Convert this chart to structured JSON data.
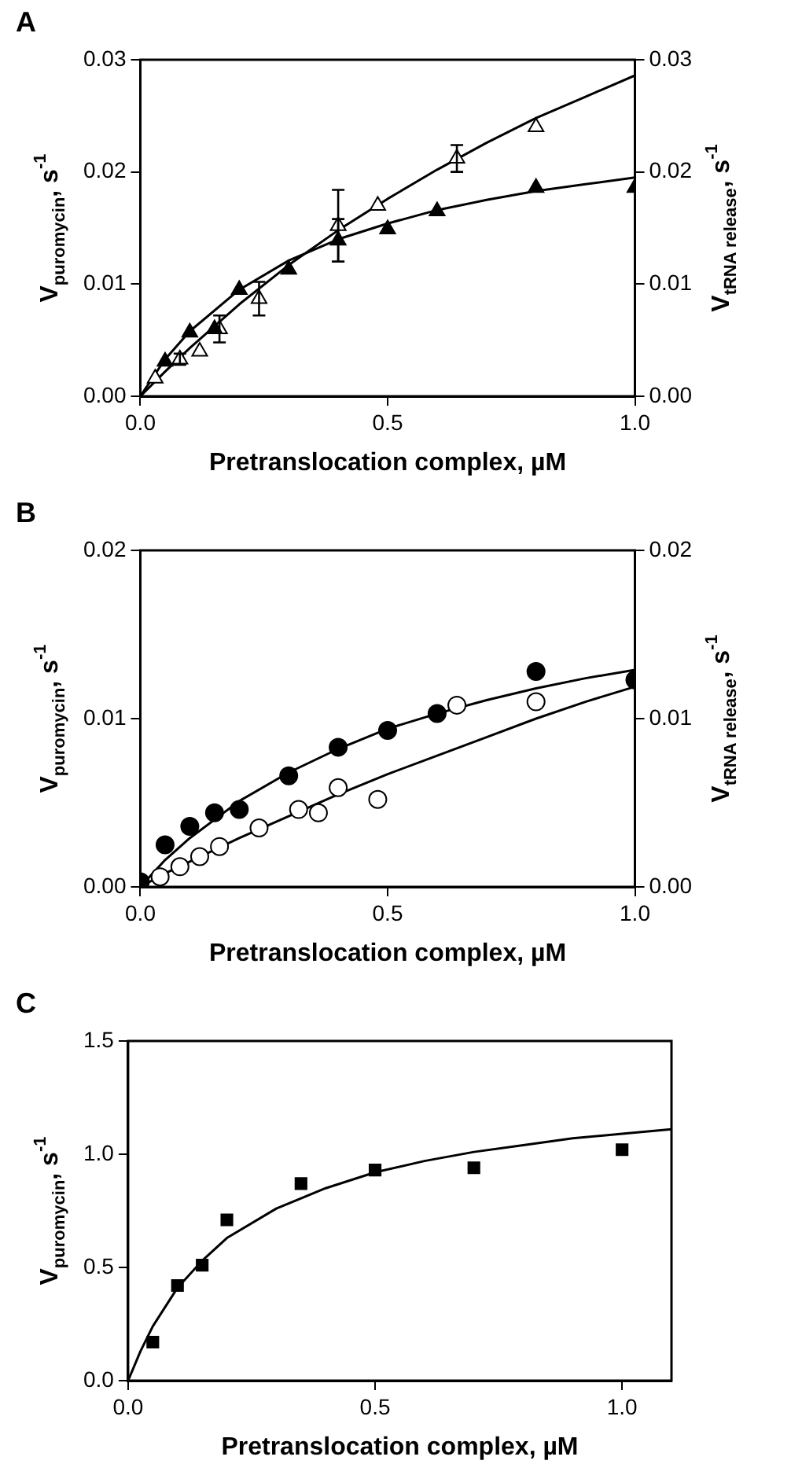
{
  "chart_data": [
    {
      "type": "scatter",
      "title": "A",
      "xlabel": "Pretranslocation complex, µM",
      "ylabel": "V$_{puromycin}$, s$^{-1}$",
      "y2label": "V$_{tRNA release}$, s$^{-1}$",
      "xlim": [
        0,
        1.0
      ],
      "xticks": [
        {
          "value": 0,
          "label": "0.0"
        },
        {
          "value": 0.5,
          "label": "0.5"
        },
        {
          "value": 1,
          "label": "1.0"
        }
      ],
      "ylim": [
        0,
        0.03
      ],
      "yticks": [
        {
          "value": 0,
          "label": "0.00"
        },
        {
          "value": 0.01,
          "label": "0.01"
        },
        {
          "value": 0.02,
          "label": "0.02"
        },
        {
          "value": 0.03,
          "label": "0.03"
        }
      ],
      "y2lim": [
        0,
        0.03
      ],
      "y2ticks": [
        {
          "value": 0,
          "label": "0.00"
        },
        {
          "value": 0.01,
          "label": "0.01"
        },
        {
          "value": 0.02,
          "label": "0.02"
        },
        {
          "value": 0.03,
          "label": "0.03"
        }
      ],
      "grid": false,
      "legend": false,
      "series": [
        {
          "type": "scatter",
          "color": "#000000",
          "marker": "triangle",
          "x": [
            0.05,
            0.1,
            0.15,
            0.2,
            0.3,
            0.4,
            0.5,
            0.6,
            0.8,
            1.0
          ],
          "values": [
            0.0031,
            0.0057,
            0.006,
            0.0095,
            0.0113,
            0.0139,
            0.0149,
            0.0165,
            0.0186,
            0.0186
          ],
          "errors": [
            null,
            null,
            null,
            null,
            null,
            0.0019,
            null,
            null,
            null,
            null
          ]
        },
        {
          "type": "scatter",
          "color": "#ffffff",
          "marker": "triangle",
          "x": [
            0.03,
            0.08,
            0.12,
            0.16,
            0.24,
            0.4,
            0.48,
            0.64,
            0.8
          ],
          "values": [
            0.0016,
            0.0033,
            0.004,
            0.006,
            0.0087,
            0.0152,
            0.017,
            0.0212,
            0.024
          ],
          "errors": [
            null,
            0.0005,
            null,
            0.0012,
            0.0015,
            0.0032,
            null,
            0.0012,
            null
          ]
        },
        {
          "type": "line",
          "color": "#000000",
          "marker": "none",
          "x": [
            0,
            0.05,
            0.1,
            0.2,
            0.3,
            0.4,
            0.5,
            0.6,
            0.7,
            0.8,
            0.9,
            1.0
          ],
          "values": [
            0,
            0.0033,
            0.0058,
            0.0095,
            0.0121,
            0.014,
            0.0154,
            0.0166,
            0.0175,
            0.0183,
            0.0189,
            0.0195
          ]
        },
        {
          "type": "line",
          "color": "#000000",
          "marker": "none",
          "x": [
            0,
            0.05,
            0.1,
            0.2,
            0.3,
            0.4,
            0.5,
            0.6,
            0.7,
            0.8,
            0.9,
            1.0
          ],
          "values": [
            0,
            0.0022,
            0.0043,
            0.0082,
            0.0117,
            0.0148,
            0.0176,
            0.0202,
            0.0226,
            0.0248,
            0.0267,
            0.0286
          ]
        }
      ]
    },
    {
      "type": "scatter",
      "title": "B",
      "xlabel": "Pretranslocation complex, µM",
      "ylabel": "V$_{puromycin}$, s$^{-1}$",
      "y2label": "V$_{tRNA release}$, s$^{-1}$",
      "xlim": [
        0,
        1.0
      ],
      "xticks": [
        {
          "value": 0,
          "label": "0.0"
        },
        {
          "value": 0.5,
          "label": "0.5"
        },
        {
          "value": 1,
          "label": "1.0"
        }
      ],
      "ylim": [
        0,
        0.02
      ],
      "yticks": [
        {
          "value": 0,
          "label": "0.00"
        },
        {
          "value": 0.01,
          "label": "0.01"
        },
        {
          "value": 0.02,
          "label": "0.02"
        }
      ],
      "y2lim": [
        0,
        0.02
      ],
      "y2ticks": [
        {
          "value": 0,
          "label": "0.00"
        },
        {
          "value": 0.01,
          "label": "0.01"
        },
        {
          "value": 0.02,
          "label": "0.02"
        }
      ],
      "grid": false,
      "legend": false,
      "series": [
        {
          "type": "scatter",
          "color": "#000000",
          "marker": "circle",
          "x": [
            0,
            0.05,
            0.1,
            0.15,
            0.2,
            0.3,
            0.4,
            0.5,
            0.6,
            0.8,
            1.0
          ],
          "values": [
            0.0003,
            0.0025,
            0.0036,
            0.0044,
            0.0046,
            0.0066,
            0.0083,
            0.0093,
            0.0103,
            0.0128,
            0.0123
          ]
        },
        {
          "type": "scatter",
          "color": "#ffffff",
          "marker": "circle",
          "x": [
            0.04,
            0.08,
            0.12,
            0.16,
            0.24,
            0.32,
            0.36,
            0.4,
            0.48,
            0.64,
            0.8
          ],
          "values": [
            0.0006,
            0.0012,
            0.0018,
            0.0024,
            0.0035,
            0.0046,
            0.0044,
            0.0059,
            0.0052,
            0.0108,
            0.011
          ]
        },
        {
          "type": "line",
          "color": "#000000",
          "marker": "none",
          "x": [
            0,
            0.05,
            0.1,
            0.2,
            0.3,
            0.4,
            0.5,
            0.6,
            0.7,
            0.8,
            0.9,
            1.0
          ],
          "values": [
            0,
            0.0016,
            0.0029,
            0.0051,
            0.0068,
            0.0082,
            0.0094,
            0.0103,
            0.0111,
            0.0118,
            0.0124,
            0.0129
          ]
        },
        {
          "type": "line",
          "color": "#000000",
          "marker": "none",
          "x": [
            0,
            0.05,
            0.1,
            0.2,
            0.3,
            0.4,
            0.5,
            0.6,
            0.7,
            0.8,
            0.9,
            1.0
          ],
          "values": [
            0,
            0.0008,
            0.0015,
            0.0029,
            0.0042,
            0.0055,
            0.0067,
            0.0078,
            0.0089,
            0.01,
            0.011,
            0.0119
          ]
        }
      ]
    },
    {
      "type": "scatter",
      "title": "C",
      "xlabel": "Pretranslocation complex, µM",
      "ylabel": "V$_{puromycin}$, s$^{-1}$",
      "xlim": [
        0,
        1.1
      ],
      "xticks": [
        {
          "value": 0,
          "label": "0.0"
        },
        {
          "value": 0.5,
          "label": "0.5"
        },
        {
          "value": 1,
          "label": "1.0"
        }
      ],
      "ylim": [
        0,
        1.5
      ],
      "yticks": [
        {
          "value": 0,
          "label": "0.0"
        },
        {
          "value": 0.5,
          "label": "0.5"
        },
        {
          "value": 1,
          "label": "1.0"
        },
        {
          "value": 1.5,
          "label": "1.5"
        }
      ],
      "grid": false,
      "legend": false,
      "series": [
        {
          "type": "scatter",
          "color": "#000000",
          "marker": "square",
          "x": [
            0.05,
            0.1,
            0.15,
            0.2,
            0.35,
            0.5,
            0.7,
            1.0
          ],
          "values": [
            0.17,
            0.42,
            0.51,
            0.71,
            0.87,
            0.93,
            0.94,
            1.02
          ]
        },
        {
          "type": "line",
          "color": "#000000",
          "marker": "none",
          "x": [
            0,
            0.025,
            0.05,
            0.1,
            0.15,
            0.2,
            0.3,
            0.4,
            0.5,
            0.6,
            0.7,
            0.8,
            0.9,
            1.0,
            1.1
          ],
          "values": [
            0,
            0.13,
            0.24,
            0.41,
            0.53,
            0.63,
            0.76,
            0.85,
            0.92,
            0.97,
            1.01,
            1.04,
            1.07,
            1.09,
            1.11
          ]
        }
      ]
    }
  ]
}
